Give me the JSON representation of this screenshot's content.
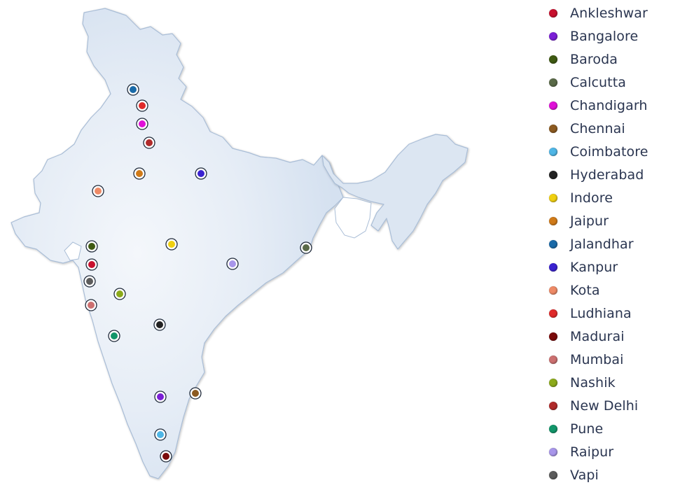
{
  "cities": [
    {
      "id": "ankleshwar",
      "name": "Ankleshwar",
      "color": "#c8102e"
    },
    {
      "id": "bangalore",
      "name": "Bangalore",
      "color": "#7b1fd6"
    },
    {
      "id": "baroda",
      "name": "Baroda",
      "color": "#3f5a12"
    },
    {
      "id": "calcutta",
      "name": "Calcutta",
      "color": "#5a6a48"
    },
    {
      "id": "chandigarh",
      "name": "Chandigarh",
      "color": "#e010d8"
    },
    {
      "id": "chennai",
      "name": "Chennai",
      "color": "#8c5a20"
    },
    {
      "id": "coimbatore",
      "name": "Coimbatore",
      "color": "#4fb6e6"
    },
    {
      "id": "hyderabad",
      "name": "Hyderabad",
      "color": "#222222"
    },
    {
      "id": "indore",
      "name": "Indore",
      "color": "#f0d010"
    },
    {
      "id": "jaipur",
      "name": "Jaipur",
      "color": "#d07a18"
    },
    {
      "id": "jalandhar",
      "name": "Jalandhar",
      "color": "#1a6aa8"
    },
    {
      "id": "kanpur",
      "name": "Kanpur",
      "color": "#3a22d0"
    },
    {
      "id": "kota",
      "name": "Kota",
      "color": "#ee8a66"
    },
    {
      "id": "ludhiana",
      "name": "Ludhiana",
      "color": "#e02a2a"
    },
    {
      "id": "madurai",
      "name": "Madurai",
      "color": "#7a0a0a"
    },
    {
      "id": "mumbai",
      "name": "Mumbai",
      "color": "#cc7070"
    },
    {
      "id": "nashik",
      "name": "Nashik",
      "color": "#8caa1a"
    },
    {
      "id": "new_delhi",
      "name": "New Delhi",
      "color": "#b02a2a"
    },
    {
      "id": "pune",
      "name": "Pune",
      "color": "#12966a"
    },
    {
      "id": "raipur",
      "name": "Raipur",
      "color": "#a896ea"
    },
    {
      "id": "vapi",
      "name": "Vapi",
      "color": "#5c5c5c"
    }
  ],
  "map": {
    "land_color": "#d5e1f0",
    "land_highlight": "#f4f7fb",
    "border_color": "#a9bdd6"
  }
}
